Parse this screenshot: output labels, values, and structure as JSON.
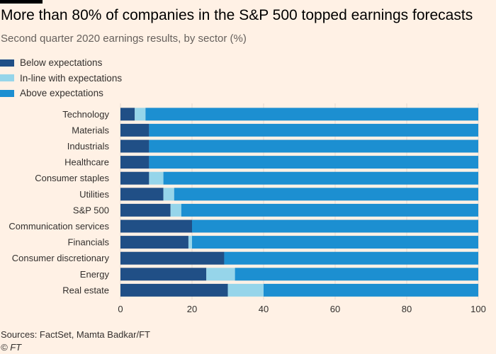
{
  "header": {
    "title": "More than 80% of companies in the S&P 500 topped earnings forecasts",
    "subtitle": "Second quarter 2020 earnings results, by sector (%)"
  },
  "legend": [
    {
      "label": "Below expectations",
      "color": "#204f86"
    },
    {
      "label": "In-line with expectations",
      "color": "#96d5ea"
    },
    {
      "label": "Above expectations",
      "color": "#1c8fd1"
    }
  ],
  "chart_data": {
    "type": "bar",
    "orientation": "horizontal",
    "stacked": true,
    "categories": [
      "Technology",
      "Materials",
      "Industrials",
      "Healthcare",
      "Consumer staples",
      "Utilities",
      "S&P 500",
      "Communication services",
      "Financials",
      "Consumer discretionary",
      "Energy",
      "Real estate"
    ],
    "series": [
      {
        "name": "Below expectations",
        "color": "#204f86",
        "values": [
          4,
          8,
          8,
          8,
          8,
          12,
          14,
          20,
          19,
          29,
          24,
          30
        ]
      },
      {
        "name": "In-line with expectations",
        "color": "#96d5ea",
        "values": [
          3,
          0,
          0,
          0,
          4,
          3,
          3,
          0,
          1,
          0,
          8,
          10
        ]
      },
      {
        "name": "Above expectations",
        "color": "#1c8fd1",
        "values": [
          93,
          92,
          92,
          92,
          88,
          85,
          83,
          80,
          80,
          71,
          68,
          60
        ]
      }
    ],
    "xlim": [
      0,
      100
    ],
    "xticks": [
      0,
      20,
      40,
      60,
      80,
      100
    ],
    "xlabel": "",
    "ylabel": "",
    "grid": true,
    "legend_position": "top-left"
  },
  "footer": {
    "source": "Sources: FactSet, Mamta Badkar/FT",
    "credit": "© FT"
  }
}
